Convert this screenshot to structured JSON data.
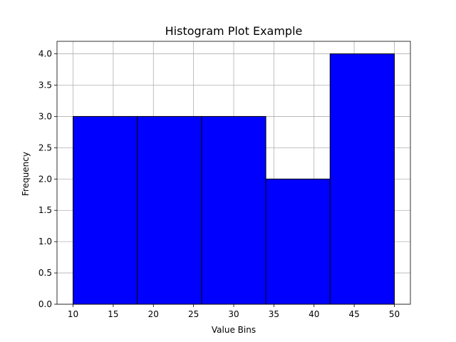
{
  "chart_data": {
    "type": "bar",
    "title": "Histogram Plot Example",
    "xlabel": "Value Bins",
    "ylabel": "Frequency",
    "bins": [
      {
        "start": 10,
        "end": 18,
        "count": 3
      },
      {
        "start": 18,
        "end": 26,
        "count": 3
      },
      {
        "start": 26,
        "end": 34,
        "count": 3
      },
      {
        "start": 34,
        "end": 42,
        "count": 2
      },
      {
        "start": 42,
        "end": 50,
        "count": 4
      }
    ],
    "xlim": [
      8,
      52
    ],
    "ylim": [
      0,
      4.2
    ],
    "xticks": [
      "10",
      "15",
      "20",
      "25",
      "30",
      "35",
      "40",
      "45",
      "50"
    ],
    "yticks": [
      "0.0",
      "0.5",
      "1.0",
      "1.5",
      "2.0",
      "2.5",
      "3.0",
      "3.5",
      "4.0"
    ],
    "grid": true,
    "bar_color": "#0000ff",
    "edge_color": "#000000",
    "grid_color": "#b0b0b0"
  }
}
